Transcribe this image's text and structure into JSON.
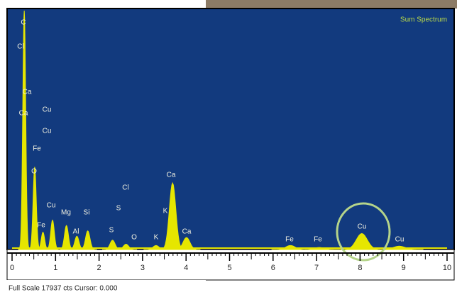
{
  "chart_data": {
    "type": "spectrum",
    "title": "Sum Spectrum",
    "footer": "Full Scale 17937 cts Cursor: 0.000",
    "x": [
      0.28,
      0.52,
      0.71,
      0.93,
      1.25,
      1.49,
      1.74,
      2.31,
      2.62,
      3.31,
      3.69,
      4.01,
      6.4,
      7.06,
      8.04,
      8.9
    ],
    "values": [
      17937,
      6200,
      1300,
      2200,
      1800,
      1000,
      1400,
      700,
      400,
      300,
      5000,
      900,
      300,
      150,
      1200,
      250
    ],
    "color": "#e6e600",
    "xlim": [
      0,
      10
    ],
    "xticks": [
      0,
      1,
      2,
      3,
      4,
      5,
      6,
      7,
      8,
      9,
      10
    ],
    "ylim": [
      0,
      17937
    ],
    "annotations": [
      "C",
      "Cl",
      "Ca",
      "Ca",
      "Cu",
      "Cu",
      "Fe",
      "O",
      "Cu",
      "Fe",
      "Mg",
      "Si",
      "Al",
      "Cl",
      "S",
      "S",
      "O",
      "K",
      "Ca",
      "K",
      "Ca",
      "Fe",
      "Fe",
      "Cu",
      "Cu"
    ]
  }
}
